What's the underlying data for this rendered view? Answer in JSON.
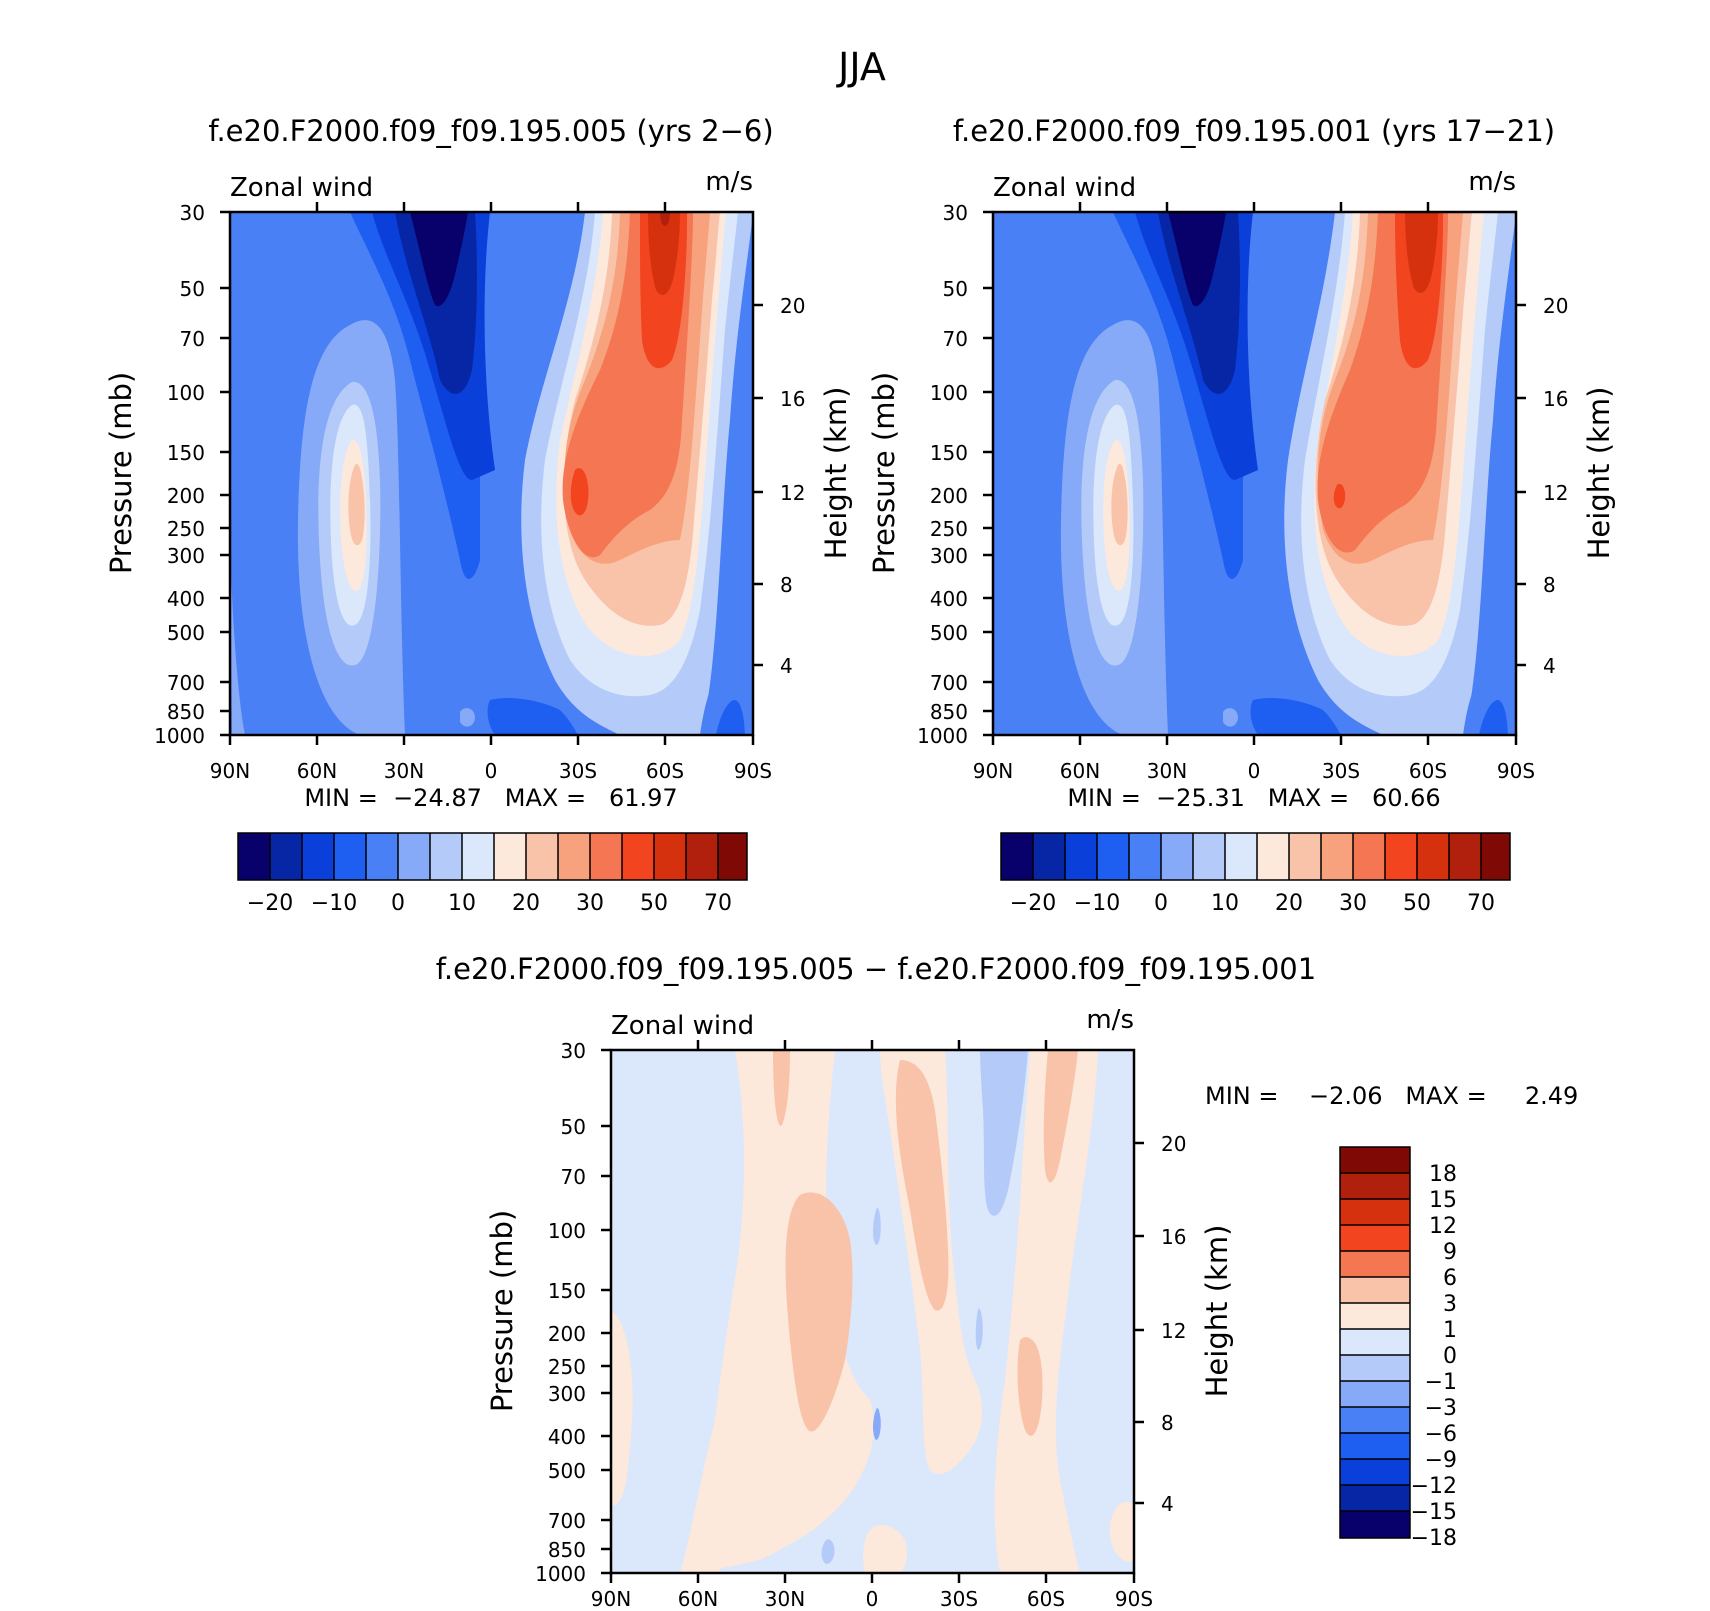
{
  "figure": {
    "title": "JJA",
    "colors": {
      "full_scale": [
        "#08006b",
        "#0726a5",
        "#0a3fd9",
        "#1e5ef0",
        "#4a80f5",
        "#86aaf7",
        "#b4cbf9",
        "#dbe7fb",
        "#fde8dc",
        "#f9c3aa",
        "#f7a17d",
        "#f47652",
        "#f1441f",
        "#d6310e",
        "#b1200c",
        "#7f0a05"
      ],
      "diff_scale": [
        "#08006b",
        "#0726a5",
        "#0a3fd9",
        "#1e5ef0",
        "#4a80f5",
        "#86aaf7",
        "#b4cbf9",
        "#dbe7fb",
        "#fde8dc",
        "#f9c3aa",
        "#f47652",
        "#f1441f",
        "#d6310e",
        "#b1200c",
        "#7f0a05"
      ]
    }
  },
  "chart_data": [
    {
      "type": "heatmap",
      "title": "f.e20.F2000.f09_f09.195.005 (yrs 2−6)",
      "field_label": "Zonal wind",
      "units": "m/s",
      "xlabel": "",
      "ylabel": "Pressure (mb)",
      "ylabel_right": "Height (km)",
      "x_ticks": [
        "90N",
        "60N",
        "30N",
        "0",
        "30S",
        "60S",
        "90S"
      ],
      "y_ticks": [
        "30",
        "50",
        "70",
        "100",
        "150",
        "200",
        "250",
        "300",
        "400",
        "500",
        "700",
        "850",
        "1000"
      ],
      "y_ticks_right": [
        "20",
        "16",
        "12",
        "8",
        "4"
      ],
      "ylim": [
        1000,
        30
      ],
      "y_scale": "log",
      "stats_text": "MIN =  −24.87   MAX =   61.97",
      "min": -24.87,
      "max": 61.97,
      "colorbar_labels": [
        "−20",
        "−10",
        "0",
        "10",
        "20",
        "30",
        "50",
        "70"
      ],
      "colorbar_orientation": "horizontal"
    },
    {
      "type": "heatmap",
      "title": "f.e20.F2000.f09_f09.195.001 (yrs 17−21)",
      "field_label": "Zonal wind",
      "units": "m/s",
      "xlabel": "",
      "ylabel": "Pressure (mb)",
      "ylabel_right": "Height (km)",
      "x_ticks": [
        "90N",
        "60N",
        "30N",
        "0",
        "30S",
        "60S",
        "90S"
      ],
      "y_ticks": [
        "30",
        "50",
        "70",
        "100",
        "150",
        "200",
        "250",
        "300",
        "400",
        "500",
        "700",
        "850",
        "1000"
      ],
      "y_ticks_right": [
        "20",
        "16",
        "12",
        "8",
        "4"
      ],
      "ylim": [
        1000,
        30
      ],
      "y_scale": "log",
      "stats_text": "MIN =  −25.31   MAX =   60.66",
      "min": -25.31,
      "max": 60.66,
      "colorbar_labels": [
        "−20",
        "−10",
        "0",
        "10",
        "20",
        "30",
        "50",
        "70"
      ],
      "colorbar_orientation": "horizontal"
    },
    {
      "type": "heatmap",
      "title": "f.e20.F2000.f09_f09.195.005 − f.e20.F2000.f09_f09.195.001",
      "field_label": "Zonal wind",
      "units": "m/s",
      "xlabel": "",
      "ylabel": "Pressure (mb)",
      "ylabel_right": "Height (km)",
      "x_ticks": [
        "90N",
        "60N",
        "30N",
        "0",
        "30S",
        "60S",
        "90S"
      ],
      "y_ticks": [
        "30",
        "50",
        "70",
        "100",
        "150",
        "200",
        "250",
        "300",
        "400",
        "500",
        "700",
        "850",
        "1000"
      ],
      "y_ticks_right": [
        "20",
        "16",
        "12",
        "8",
        "4"
      ],
      "ylim": [
        1000,
        30
      ],
      "y_scale": "log",
      "stats_text": "MIN =    −2.06   MAX =     2.49",
      "min": -2.06,
      "max": 2.49,
      "colorbar_labels": [
        "18",
        "15",
        "12",
        "9",
        "6",
        "3",
        "1",
        "0",
        "−1",
        "−3",
        "−6",
        "−9",
        "−12",
        "−15",
        "−18"
      ],
      "colorbar_orientation": "vertical"
    }
  ]
}
